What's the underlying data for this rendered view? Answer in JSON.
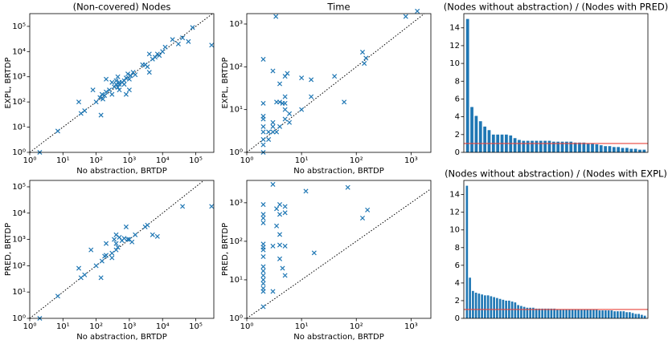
{
  "chart_data": [
    {
      "type": "scatter",
      "title": "(Non-covered) Nodes",
      "xlabel": "No abstraction, BRTDP",
      "ylabel": "EXPL, BRTDP",
      "xscale": "log",
      "yscale": "log",
      "identity_line": true,
      "color": "#1f77b4",
      "xlim": [
        1,
        350000
      ],
      "ylim": [
        1,
        320000
      ],
      "xticks": [
        {
          "value": 1,
          "label": "10⁰"
        },
        {
          "value": 10,
          "label": "10¹"
        },
        {
          "value": 100,
          "label": "10²"
        },
        {
          "value": 1000,
          "label": "10³"
        },
        {
          "value": 10000,
          "label": "10⁴"
        },
        {
          "value": 100000,
          "label": "10⁵"
        }
      ],
      "yticks": [
        {
          "value": 1,
          "label": "10⁰"
        },
        {
          "value": 10,
          "label": "10¹"
        },
        {
          "value": 100,
          "label": "10²"
        },
        {
          "value": 1000,
          "label": "10³"
        },
        {
          "value": 10000,
          "label": "10⁴"
        },
        {
          "value": 100000,
          "label": "10⁵"
        }
      ],
      "x": [
        2,
        7,
        30,
        35,
        45,
        80,
        100,
        130,
        140,
        150,
        160,
        180,
        200,
        200,
        250,
        300,
        300,
        350,
        400,
        400,
        450,
        500,
        500,
        600,
        700,
        700,
        800,
        800,
        900,
        1000,
        1000,
        1100,
        1300,
        1500,
        2500,
        3000,
        3500,
        4000,
        4000,
        5000,
        6000,
        7000,
        8000,
        10000,
        12000,
        20000,
        30000,
        40000,
        60000,
        80000,
        300000,
        500,
        450
      ],
      "y": [
        1,
        7,
        100,
        35,
        45,
        300,
        100,
        150,
        30,
        200,
        130,
        180,
        800,
        250,
        300,
        200,
        600,
        400,
        700,
        500,
        1000,
        300,
        600,
        600,
        700,
        500,
        200,
        900,
        1300,
        300,
        800,
        1100,
        1500,
        1200,
        3000,
        3000,
        2500,
        1500,
        8000,
        5000,
        6000,
        8000,
        7000,
        10000,
        15000,
        30000,
        20000,
        35000,
        25000,
        90000,
        18000,
        500,
        380
      ]
    },
    {
      "type": "scatter",
      "title": "Time",
      "xlabel": "No abstraction, BRTDP",
      "ylabel": "EXPL, BRTDP",
      "xscale": "log",
      "yscale": "log",
      "identity_line": true,
      "color": "#1f77b4",
      "xlim": [
        1,
        2300
      ],
      "ylim": [
        1,
        1750
      ],
      "xticks": [
        {
          "value": 1,
          "label": "10⁰"
        },
        {
          "value": 10,
          "label": "10¹"
        },
        {
          "value": 100,
          "label": "10²"
        },
        {
          "value": 1000,
          "label": "10³"
        }
      ],
      "yticks": [
        {
          "value": 1,
          "label": "10⁰"
        },
        {
          "value": 10,
          "label": "10¹"
        },
        {
          "value": 100,
          "label": "10²"
        },
        {
          "value": 1000,
          "label": "10³"
        }
      ],
      "x": [
        2,
        2,
        2,
        2,
        2,
        2,
        2,
        2,
        2,
        3.4,
        2.5,
        2.5,
        3,
        3,
        3,
        3.5,
        3.5,
        4,
        4,
        4.5,
        5,
        5,
        5,
        5.5,
        6,
        6,
        4,
        10,
        10,
        15,
        15,
        40,
        60,
        130,
        140,
        150,
        800,
        1300,
        5,
        3,
        5
      ],
      "y": [
        1,
        1.5,
        2,
        3,
        4,
        6,
        7,
        14,
        150,
        1500,
        2,
        3,
        4,
        5,
        80,
        3,
        15,
        15,
        40,
        14,
        14,
        10,
        60,
        70,
        5,
        8,
        4,
        10,
        55,
        20,
        50,
        60,
        15,
        220,
        120,
        160,
        1500,
        2000,
        20,
        3,
        6
      ]
    },
    {
      "type": "bar",
      "title": "(Nodes without abstraction) / (Nodes with PRED)",
      "color": "#1f77b4",
      "hline": 1,
      "hline_color": "#e8453c",
      "ylim": [
        0,
        15.6
      ],
      "yticks": [
        0,
        2,
        4,
        6,
        8,
        10,
        12,
        14
      ],
      "values": [
        15,
        5.1,
        4.1,
        3.5,
        2.9,
        2.5,
        2.0,
        2.0,
        2.0,
        2.0,
        1.9,
        1.6,
        1.4,
        1.3,
        1.3,
        1.3,
        1.3,
        1.3,
        1.3,
        1.3,
        1.2,
        1.2,
        1.2,
        1.2,
        1.2,
        1.1,
        1.1,
        1.1,
        1.0,
        1.0,
        0.9,
        0.8,
        0.7,
        0.7,
        0.6,
        0.6,
        0.5,
        0.5,
        0.4,
        0.4,
        0.3,
        0.3
      ]
    },
    {
      "type": "scatter",
      "xlabel": "No abstraction, BRTDP",
      "ylabel": "PRED, BRTDP",
      "xscale": "log",
      "yscale": "log",
      "identity_line": true,
      "color": "#1f77b4",
      "xlim": [
        1,
        350000
      ],
      "ylim": [
        1,
        175000
      ],
      "xticks": [
        {
          "value": 1,
          "label": "10⁰"
        },
        {
          "value": 10,
          "label": "10¹"
        },
        {
          "value": 100,
          "label": "10²"
        },
        {
          "value": 1000,
          "label": "10³"
        },
        {
          "value": 10000,
          "label": "10⁴"
        },
        {
          "value": 100000,
          "label": "10⁵"
        }
      ],
      "yticks": [
        {
          "value": 1,
          "label": "10⁰"
        },
        {
          "value": 10,
          "label": "10¹"
        },
        {
          "value": 100,
          "label": "10²"
        },
        {
          "value": 1000,
          "label": "10³"
        },
        {
          "value": 10000,
          "label": "10⁴"
        },
        {
          "value": 100000,
          "label": "10⁵"
        }
      ],
      "x": [
        2,
        7,
        30,
        35,
        45,
        70,
        100,
        140,
        150,
        180,
        200,
        200,
        300,
        350,
        400,
        400,
        450,
        500,
        600,
        700,
        800,
        900,
        1000,
        1200,
        1500,
        3000,
        3500,
        5000,
        7000,
        40000,
        300000,
        400,
        300
      ],
      "y": [
        1,
        7,
        80,
        35,
        45,
        400,
        100,
        35,
        150,
        230,
        250,
        700,
        300,
        1000,
        1500,
        700,
        500,
        1200,
        900,
        1100,
        3000,
        1000,
        1000,
        800,
        1500,
        3000,
        3500,
        1500,
        1300,
        18000,
        18000,
        400,
        200
      ]
    },
    {
      "type": "scatter",
      "xlabel": "No abstraction, BRTDP",
      "ylabel": "PRED, BRTDP",
      "xscale": "log",
      "yscale": "log",
      "identity_line": true,
      "color": "#1f77b4",
      "xlim": [
        1,
        2300
      ],
      "ylim": [
        1,
        3800
      ],
      "xticks": [
        {
          "value": 1,
          "label": "10⁰"
        },
        {
          "value": 10,
          "label": "10¹"
        },
        {
          "value": 100,
          "label": "10²"
        },
        {
          "value": 1000,
          "label": "10³"
        }
      ],
      "yticks": [
        {
          "value": 1,
          "label": "10⁰"
        },
        {
          "value": 10,
          "label": "10¹"
        },
        {
          "value": 100,
          "label": "10²"
        },
        {
          "value": 1000,
          "label": "10³"
        }
      ],
      "x": [
        2,
        2,
        2,
        2,
        2,
        2,
        2,
        2,
        2,
        2,
        2,
        2,
        2,
        2,
        2,
        2,
        3,
        3,
        3,
        3.5,
        4,
        4,
        4,
        4,
        4.5,
        5,
        5,
        5,
        5,
        12,
        17,
        70,
        160,
        130,
        3.5,
        4
      ],
      "y": [
        2,
        5,
        6,
        8,
        10,
        13,
        17,
        22,
        40,
        60,
        70,
        85,
        300,
        400,
        500,
        900,
        75,
        5,
        3000,
        700,
        900,
        500,
        80,
        35,
        20,
        13,
        75,
        800,
        550,
        2000,
        50,
        2500,
        650,
        400,
        250,
        150
      ]
    },
    {
      "type": "bar",
      "title": "(Nodes without abstraction) / (Nodes with EXPL)",
      "color": "#1f77b4",
      "hline": 1,
      "hline_color": "#e8453c",
      "ylim": [
        0,
        15.6
      ],
      "yticks": [
        0,
        2,
        4,
        6,
        8,
        10,
        12,
        14
      ],
      "values": [
        15,
        4.6,
        3.1,
        2.9,
        2.8,
        2.7,
        2.6,
        2.6,
        2.5,
        2.4,
        2.3,
        2.2,
        2.1,
        2.0,
        2.0,
        1.9,
        1.8,
        1.5,
        1.4,
        1.3,
        1.2,
        1.2,
        1.2,
        1.1,
        1.1,
        1.1,
        1.1,
        1.1,
        1.1,
        1.1,
        1.0,
        1.0,
        1.0,
        1.0,
        1.0,
        1.0,
        1.0,
        1.0,
        1.0,
        1.0,
        1.0,
        1.0,
        1.0,
        1.0,
        0.9,
        0.9,
        0.9,
        0.9,
        0.9,
        0.8,
        0.8,
        0.8,
        0.8,
        0.7,
        0.7,
        0.6,
        0.5,
        0.5,
        0.4,
        0.3
      ]
    }
  ]
}
